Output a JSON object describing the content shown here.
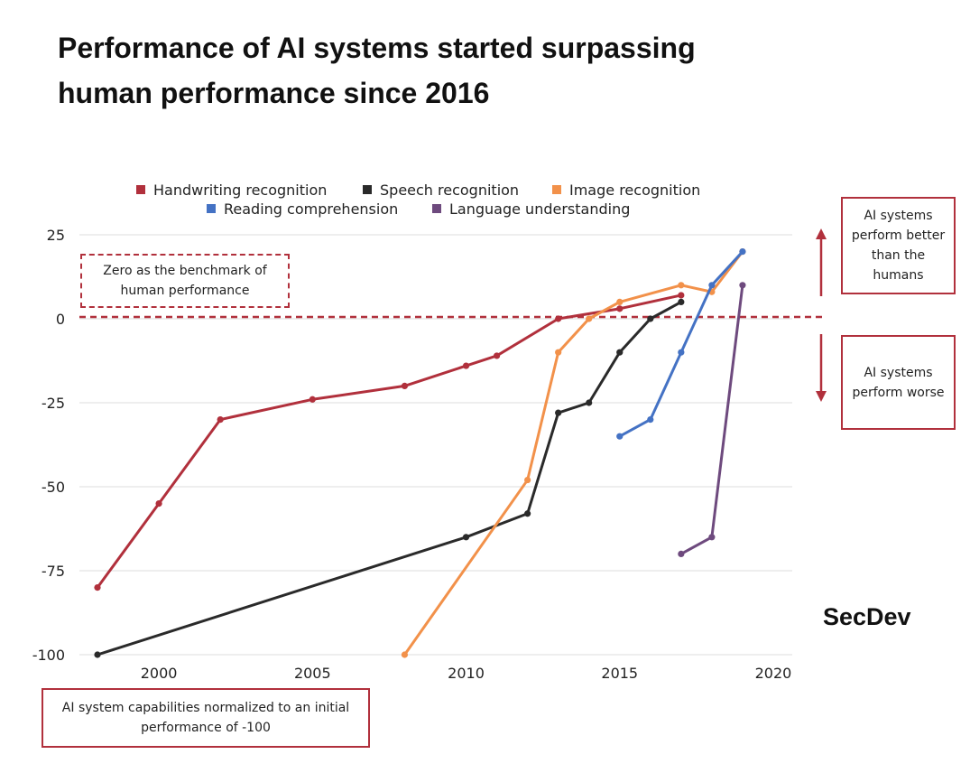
{
  "title_lines": [
    "Performance of AI systems started surpassing",
    "human performance since 2016"
  ],
  "brand": "SecDev",
  "colors": {
    "handwriting": "#b1303c",
    "speech": "#2a2a2a",
    "image": "#f2914a",
    "reading": "#4472c4",
    "language": "#6e4a7e",
    "benchmark": "#b1303c",
    "grid": "#dcdcdc"
  },
  "notes": {
    "benchmark": [
      "Zero as the benchmark of",
      "human performance"
    ],
    "better": [
      "AI systems",
      "perform better",
      "than the",
      "humans"
    ],
    "worse": [
      "AI systems",
      "perform worse"
    ],
    "normalized": [
      "AI system capabilities normalized to an initial",
      "performance of -100"
    ]
  },
  "chart_data": {
    "type": "line",
    "title": "Performance of AI systems started surpassing human performance since 2016",
    "xlabel": "",
    "ylabel": "",
    "xlim": [
      1998,
      2020.5
    ],
    "ylim": [
      -100,
      25
    ],
    "x_ticks": [
      2000,
      2005,
      2010,
      2015,
      2020
    ],
    "y_ticks": [
      25,
      0,
      -25,
      -50,
      -75,
      -100
    ],
    "grid": true,
    "legend_position": "top",
    "reference_line": 0,
    "series": [
      {
        "name": "Handwriting recognition",
        "color_key": "handwriting",
        "x": [
          1998,
          2000,
          2002,
          2005,
          2008,
          2010,
          2011,
          2013,
          2015,
          2017
        ],
        "y": [
          -80,
          -55,
          -30,
          -24,
          -20,
          -14,
          -11,
          0,
          3,
          7
        ]
      },
      {
        "name": "Speech recognition",
        "color_key": "speech",
        "x": [
          1998,
          2010,
          2012,
          2013,
          2014,
          2015,
          2016,
          2017
        ],
        "y": [
          -100,
          -65,
          -58,
          -28,
          -25,
          -10,
          0,
          5
        ]
      },
      {
        "name": "Image recognition",
        "color_key": "image",
        "x": [
          2008,
          2012,
          2013,
          2014,
          2015,
          2017,
          2018,
          2019
        ],
        "y": [
          -100,
          -48,
          -10,
          0,
          5,
          10,
          8,
          20
        ]
      },
      {
        "name": "Reading comprehension",
        "color_key": "reading",
        "x": [
          2015,
          2016,
          2017,
          2018,
          2019
        ],
        "y": [
          -35,
          -30,
          -10,
          10,
          20
        ]
      },
      {
        "name": "Language understanding",
        "color_key": "language",
        "x": [
          2017,
          2018,
          2019
        ],
        "y": [
          -70,
          -65,
          10
        ]
      }
    ]
  }
}
